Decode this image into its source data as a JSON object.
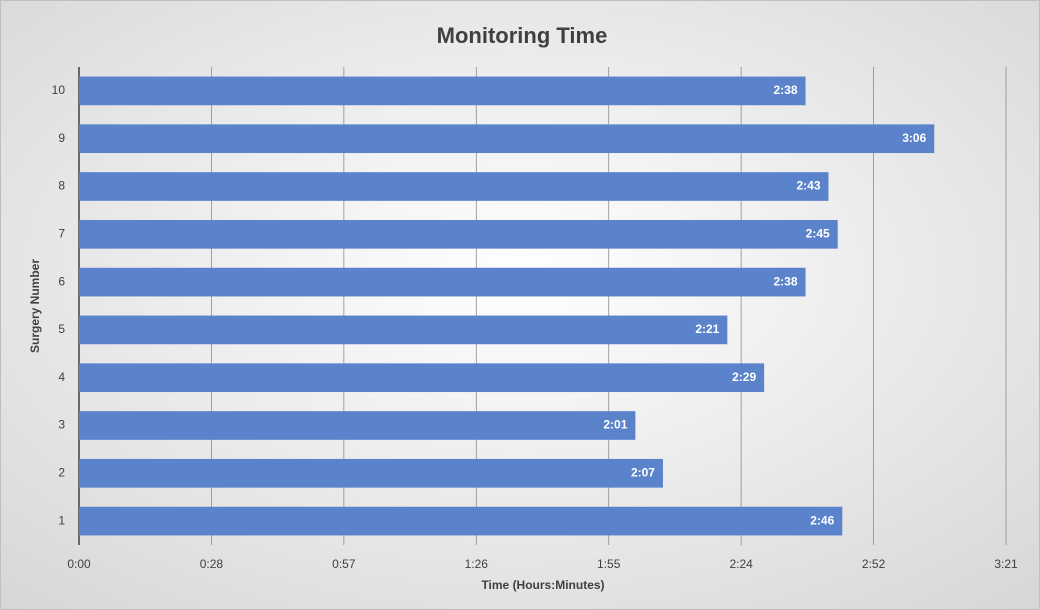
{
  "chart_data": {
    "type": "bar",
    "orientation": "horizontal",
    "title": "Monitoring Time",
    "x_label": "Time (Hours:Minutes)",
    "y_label": "Surgery Number",
    "categories": [
      "1",
      "2",
      "3",
      "4",
      "5",
      "6",
      "7",
      "8",
      "9",
      "10"
    ],
    "values": [
      166,
      127,
      121,
      149,
      141,
      158,
      165,
      163,
      186,
      158
    ],
    "value_labels": [
      "2:46",
      "2:07",
      "2:01",
      "2:29",
      "2:21",
      "2:38",
      "2:45",
      "2:43",
      "3:06",
      "2:38"
    ],
    "color": "#5b83cc",
    "xlim": [
      0,
      201.6
    ],
    "xticks": [
      {
        "value": 0,
        "label": "0:00"
      },
      {
        "value": 28.8,
        "label": "0:28"
      },
      {
        "value": 57.6,
        "label": "0:57"
      },
      {
        "value": 86.4,
        "label": "1:26"
      },
      {
        "value": 115.2,
        "label": "1:55"
      },
      {
        "value": 144,
        "label": "2:24"
      },
      {
        "value": 172.8,
        "label": "2:52"
      },
      {
        "value": 201.6,
        "label": "3:21"
      }
    ],
    "grid": true
  }
}
